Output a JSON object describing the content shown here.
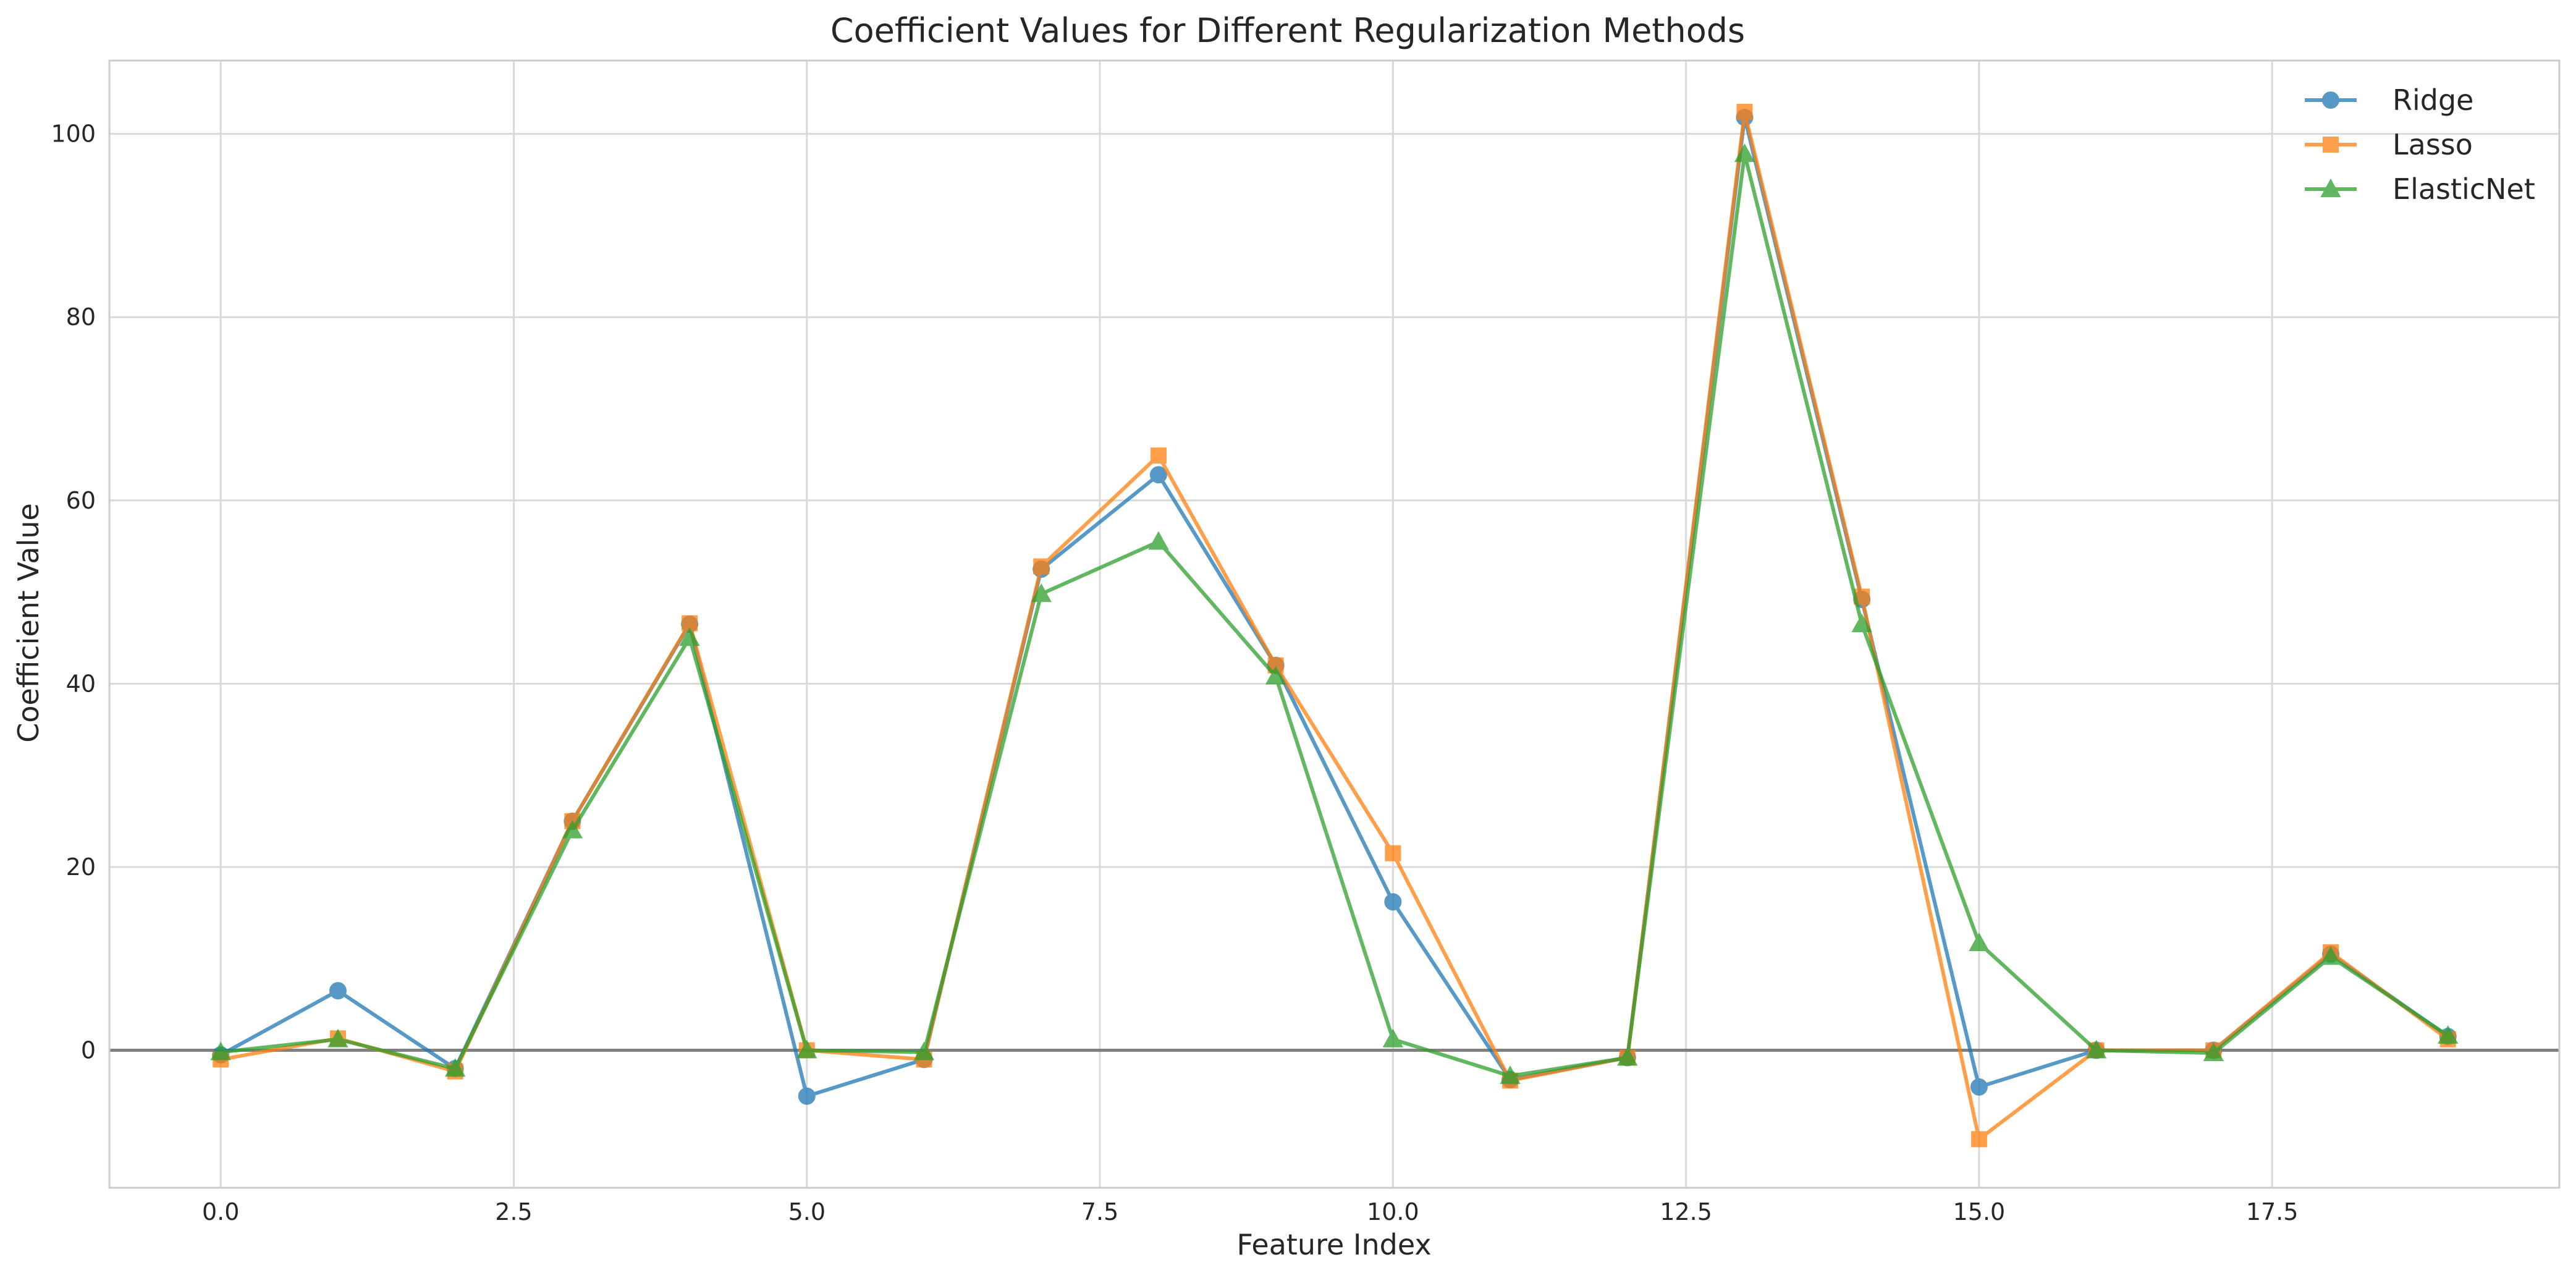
{
  "chart_data": {
    "type": "line",
    "title": "Coefficient Values for Different Regularization Methods",
    "xlabel": "Feature Index",
    "ylabel": "Coefficient Value",
    "xlim": [
      -0.95,
      19.95
    ],
    "ylim": [
      -15.0,
      108.0
    ],
    "xticks": [
      0.0,
      2.5,
      5.0,
      7.5,
      10.0,
      12.5,
      15.0,
      17.5
    ],
    "xtick_labels": [
      "0.0",
      "2.5",
      "5.0",
      "7.5",
      "10.0",
      "12.5",
      "15.0",
      "17.5"
    ],
    "yticks": [
      0,
      20,
      40,
      60,
      80,
      100
    ],
    "ytick_labels": [
      "0",
      "20",
      "40",
      "60",
      "80",
      "100"
    ],
    "grid": true,
    "zero_line": true,
    "legend_position": "top-right",
    "x": [
      0,
      1,
      2,
      3,
      4,
      5,
      6,
      7,
      8,
      9,
      10,
      11,
      12,
      13,
      14,
      15,
      16,
      17,
      18,
      19
    ],
    "series": [
      {
        "name": "Ridge",
        "color": "#1f77b4",
        "marker": "circle",
        "values": [
          -0.5,
          6.5,
          -2.0,
          25.0,
          46.5,
          -5.0,
          -1.0,
          52.5,
          62.8,
          42.0,
          16.2,
          -3.2,
          -0.8,
          101.8,
          49.2,
          -4.0,
          0.0,
          0.0,
          10.5,
          1.5
        ]
      },
      {
        "name": "Lasso",
        "color": "#ff7f0e",
        "marker": "square",
        "values": [
          -1.0,
          1.3,
          -2.3,
          25.0,
          46.6,
          0.0,
          -1.0,
          52.8,
          64.9,
          42.0,
          21.5,
          -3.3,
          -0.8,
          102.4,
          49.5,
          -9.7,
          0.0,
          0.0,
          10.7,
          1.2
        ]
      },
      {
        "name": "ElasticNet",
        "color": "#2ca02c",
        "marker": "triangle",
        "values": [
          -0.2,
          1.2,
          -2.0,
          24.0,
          45.0,
          0.0,
          -0.2,
          49.8,
          55.5,
          40.8,
          1.2,
          -2.8,
          -0.8,
          97.8,
          46.5,
          11.7,
          0.0,
          -0.3,
          10.2,
          1.6
        ]
      }
    ]
  }
}
